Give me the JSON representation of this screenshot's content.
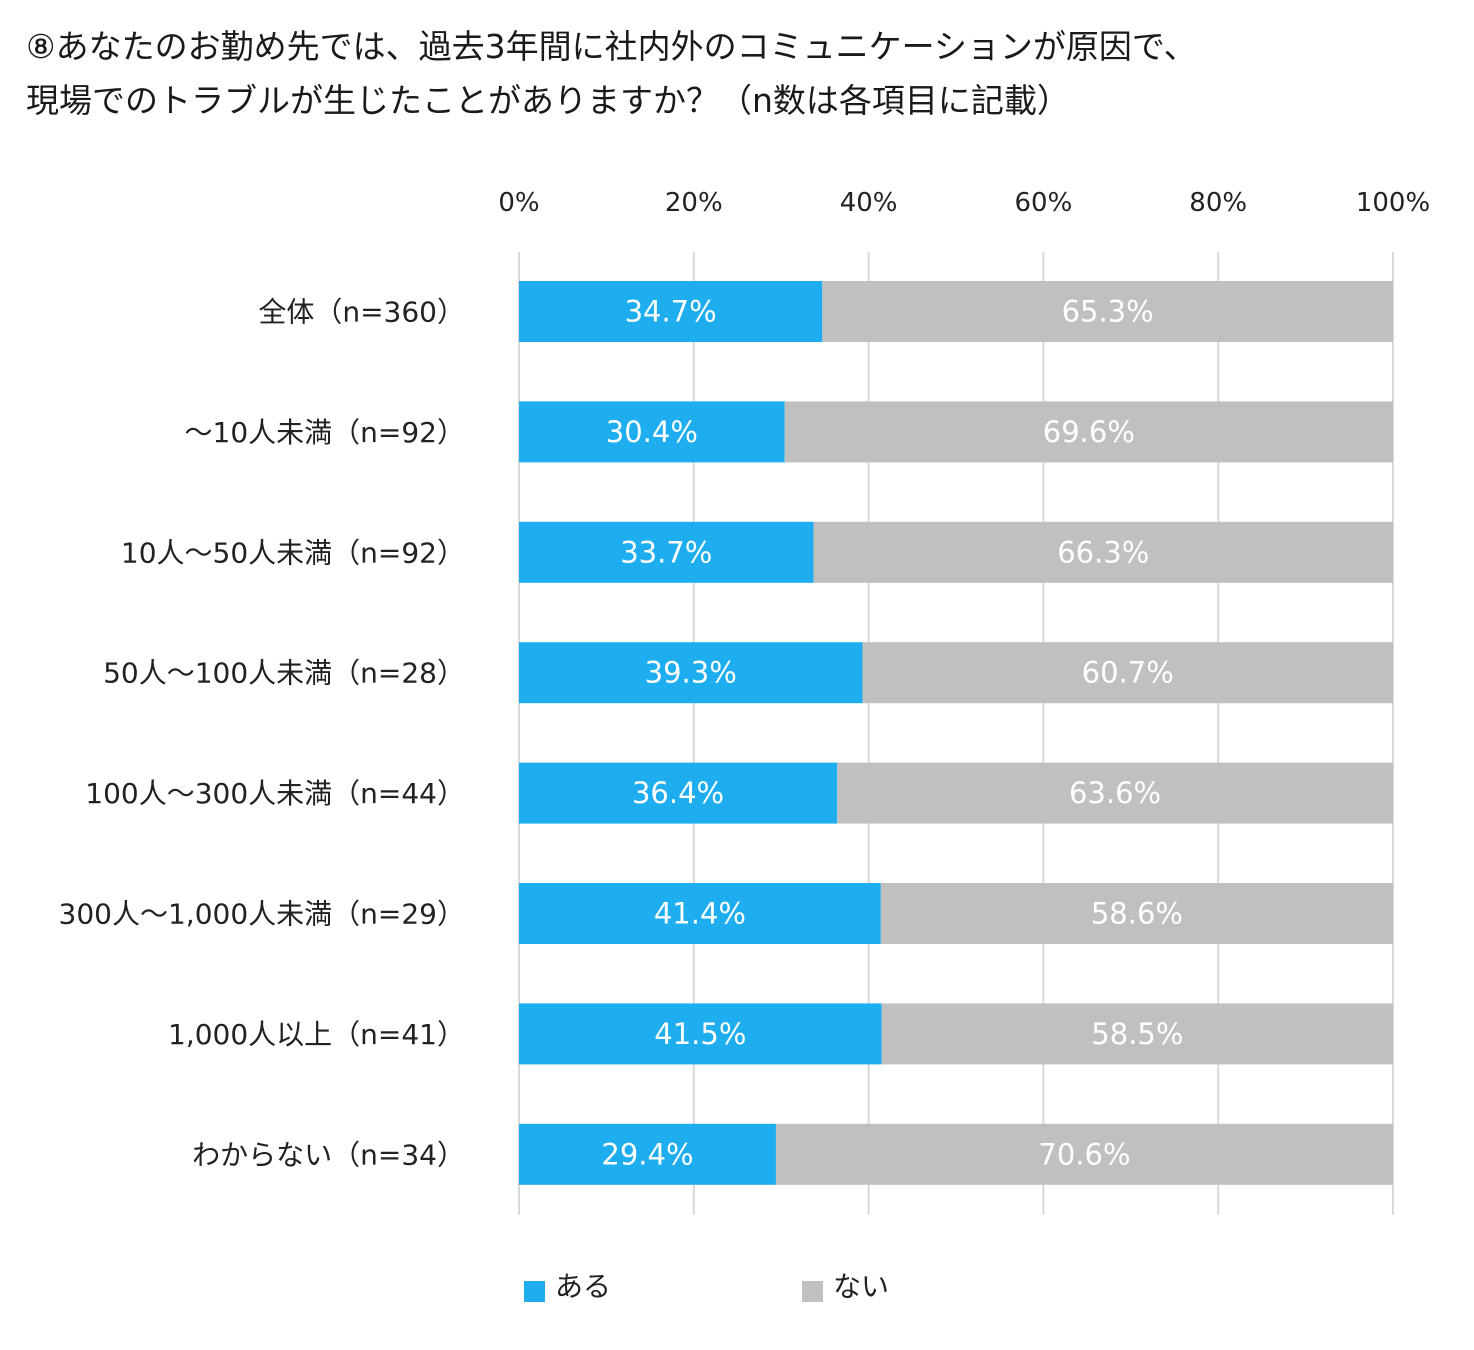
{
  "title": {
    "line1": "⑧あなたのお勤め先では、過去3年間に社内外のコミュニケーションが原因で、",
    "line2": "現場でのトラブルが生じたことがありますか？（n数は各項目に記載）"
  },
  "chart_data": {
    "type": "bar",
    "orientation": "horizontal",
    "stacked": true,
    "title": "⑧あなたのお勤め先では、過去3年間に社内外のコミュニケーションが原因で、現場でのトラブルが生じたことがありますか？（n数は各項目に記載）",
    "xlabel": "",
    "ylabel": "",
    "xlim": [
      0,
      100
    ],
    "xticks": [
      "0%",
      "20%",
      "40%",
      "60%",
      "80%",
      "100%"
    ],
    "grid": true,
    "legend_position": "bottom",
    "categories": [
      "全体（n=360）",
      "～10人未満（n=92）",
      "10人～50人未満（n=92）",
      "50人～100人未満（n=28）",
      "100人～300人未満（n=44）",
      "300人～1,000人未満（n=29）",
      "1,000人以上（n=41）",
      "わからない（n=34）"
    ],
    "series": [
      {
        "name": "ある",
        "color": "#1EAEEF",
        "values": [
          34.7,
          30.4,
          33.7,
          39.3,
          36.4,
          41.4,
          41.5,
          29.4
        ],
        "labels": [
          "34.7%",
          "30.4%",
          "33.7%",
          "39.3%",
          "36.4%",
          "41.4%",
          "41.5%",
          "29.4%"
        ]
      },
      {
        "name": "ない",
        "color": "#C0C0C0",
        "values": [
          65.3,
          69.6,
          66.3,
          60.7,
          63.6,
          58.6,
          58.5,
          70.6
        ],
        "labels": [
          "65.3%",
          "69.6%",
          "66.3%",
          "60.7%",
          "63.6%",
          "58.6%",
          "58.5%",
          "70.6%"
        ]
      }
    ]
  },
  "colors": {
    "grid": "#D9D9D9",
    "label_on_bar": "#FFFFFF"
  }
}
